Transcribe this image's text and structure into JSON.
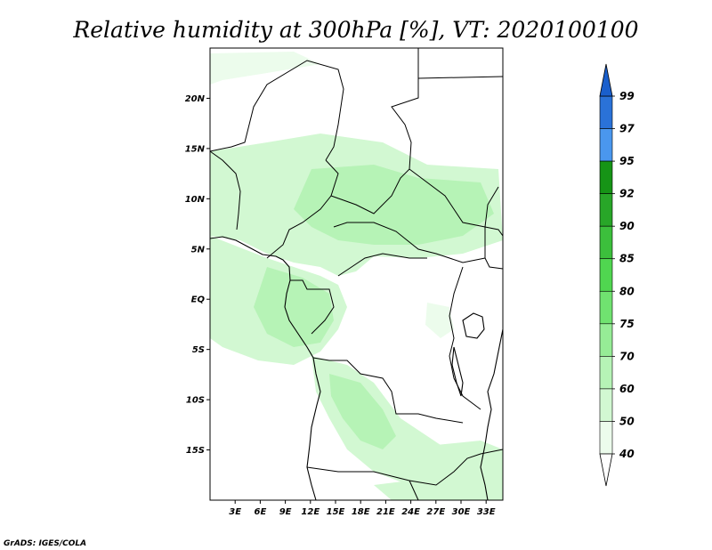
{
  "title": "Relative humidity at 300hPa [%], VT: 2020100100",
  "credit": "GrADS: IGES/COLA",
  "map": {
    "lat_ticks": [
      "20N",
      "15N",
      "10N",
      "5N",
      "EQ",
      "5S",
      "10S",
      "15S"
    ],
    "lat_values": [
      20,
      15,
      10,
      5,
      0,
      -5,
      -10,
      -15
    ],
    "lon_ticks": [
      "3E",
      "6E",
      "9E",
      "12E",
      "15E",
      "18E",
      "21E",
      "24E",
      "27E",
      "30E",
      "33E"
    ],
    "lon_values": [
      3,
      6,
      9,
      12,
      15,
      18,
      21,
      24,
      27,
      30,
      33
    ],
    "lon_range": [
      0,
      35
    ],
    "lat_range": [
      -20,
      25
    ]
  },
  "colorbar": {
    "labels": [
      "99",
      "97",
      "95",
      "92",
      "90",
      "85",
      "80",
      "75",
      "70",
      "60",
      "50",
      "40"
    ],
    "bins": [
      {
        "from": 95,
        "to": 97,
        "color": "#4a97ee"
      },
      {
        "from": 97,
        "to": 99,
        "color": "#2a72d8"
      },
      {
        "from": 92,
        "to": 95,
        "color": "#169416"
      },
      {
        "from": 90,
        "to": 92,
        "color": "#28a628"
      },
      {
        "from": 85,
        "to": 90,
        "color": "#3cbf3c"
      },
      {
        "from": 80,
        "to": 85,
        "color": "#50d650"
      },
      {
        "from": 75,
        "to": 80,
        "color": "#70e270"
      },
      {
        "from": 70,
        "to": 75,
        "color": "#96ec96"
      },
      {
        "from": 60,
        "to": 70,
        "color": "#b6f3b6"
      },
      {
        "from": 50,
        "to": 60,
        "color": "#d2f8d2"
      },
      {
        "from": 40,
        "to": 50,
        "color": "#ecfcec"
      }
    ]
  }
}
